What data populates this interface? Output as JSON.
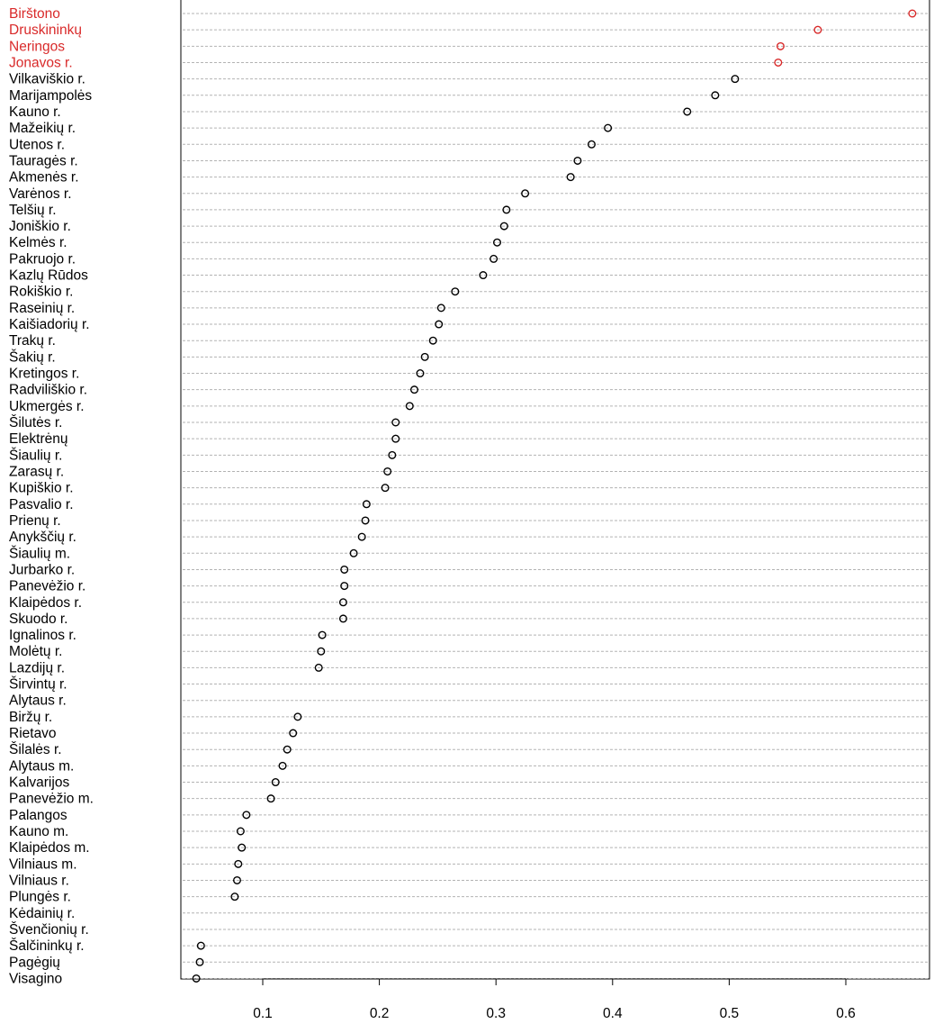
{
  "chart_data": {
    "type": "dotplot",
    "xlim": [
      0.03,
      0.66
    ],
    "xticks": [
      0.1,
      0.2,
      0.3,
      0.4,
      0.5,
      0.6
    ],
    "xtick_labels": [
      "0.1",
      "0.2",
      "0.3",
      "0.4",
      "0.5",
      "0.6"
    ],
    "grid": "horizontal dashed",
    "colors": {
      "highlight": "#d92a2a",
      "normal": "#000000",
      "grid": "#b3b3b3"
    },
    "highlight_count": 4,
    "categories": [
      "Birštono",
      "Druskininkų",
      "Neringos",
      "Jonavos r.",
      "Vilkaviškio r.",
      "Marijampolės",
      "Kauno r.",
      "Mažeikių r.",
      "Utenos r.",
      "Tauragės r.",
      "Akmenės r.",
      "Varėnos r.",
      "Telšių r.",
      "Joniškio r.",
      "Kelmės r.",
      "Pakruojo r.",
      "Kazlų Rūdos",
      "Rokiškio r.",
      "Raseinių r.",
      "Kaišiadorių r.",
      "Trakų r.",
      "Šakių r.",
      "Kretingos r.",
      "Radviliškio r.",
      "Ukmergės r.",
      "Šilutės r.",
      "Elektrėnų",
      "Šiaulių r.",
      "Zarasų r.",
      "Kupiškio r.",
      "Pasvalio r.",
      "Prienų r.",
      "Anykščių r.",
      "Šiaulių m.",
      "Jurbarko r.",
      "Panevėžio r.",
      "Klaipėdos r.",
      "Skuodo r.",
      "Ignalinos r.",
      "Molėtų r.",
      "Lazdijų r.",
      "Širvintų r.",
      "Alytaus r.",
      "Biržų r.",
      "Rietavo",
      "Šilalės r.",
      "Alytaus m.",
      "Kalvarijos",
      "Panevėžio m.",
      "Palangos",
      "Kauno m.",
      "Klaipėdos m.",
      "Vilniaus m.",
      "Vilniaus r.",
      "Plungės r.",
      "Kėdainių r.",
      "Švenčionių r.",
      "Šalčininkų r.",
      "Pagėgių",
      "Visagino"
    ],
    "values": [
      0.657,
      0.576,
      0.544,
      0.542,
      0.505,
      0.488,
      0.464,
      0.396,
      0.382,
      0.37,
      0.364,
      0.325,
      0.309,
      0.307,
      0.301,
      0.298,
      0.289,
      0.265,
      0.253,
      0.251,
      0.246,
      0.239,
      0.235,
      0.23,
      0.226,
      0.214,
      0.214,
      0.211,
      0.207,
      0.205,
      0.189,
      0.188,
      0.185,
      0.178,
      0.17,
      0.17,
      0.169,
      0.169,
      0.151,
      0.15,
      0.148,
      null,
      null,
      0.13,
      0.126,
      0.121,
      0.117,
      0.111,
      0.107,
      0.086,
      0.081,
      0.082,
      0.079,
      0.078,
      0.076,
      null,
      null,
      0.047,
      0.046,
      0.043
    ]
  }
}
